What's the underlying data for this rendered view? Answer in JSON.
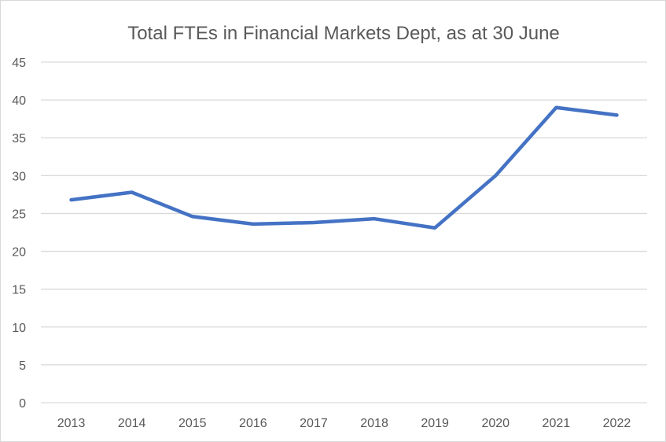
{
  "chart_data": {
    "type": "line",
    "title": "Total FTEs in Financial Markets Dept, as at 30 June",
    "xlabel": "",
    "ylabel": "",
    "categories": [
      "2013",
      "2014",
      "2015",
      "2016",
      "2017",
      "2018",
      "2019",
      "2020",
      "2021",
      "2022"
    ],
    "series": [
      {
        "name": "Total FTEs",
        "values": [
          26.8,
          27.8,
          24.6,
          23.6,
          23.8,
          24.3,
          23.1,
          30.0,
          39.0,
          38.0
        ]
      }
    ],
    "ylim": [
      0,
      45
    ],
    "yticks": [
      0,
      5,
      10,
      15,
      20,
      25,
      30,
      35,
      40,
      45
    ],
    "grid": true,
    "legend": "none",
    "line_color": "#4472c4"
  }
}
